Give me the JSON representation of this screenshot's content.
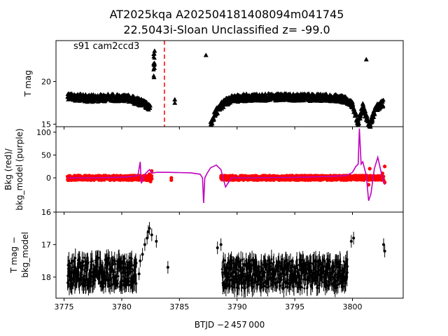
{
  "figure": {
    "title_line1": "AT2025kqa  A202504181408094m041745",
    "title_line2": "22.5043i-Sloan Unclassified z= -99.0",
    "xlabel": "BTJD −2 457 000"
  },
  "chart_data": [
    {
      "type": "scatter",
      "panel": "top",
      "ylabel": "T mag",
      "annotation": "s91 cam2ccd3",
      "xlim": [
        3774.3,
        3804.4
      ],
      "ylim": [
        24.8,
        14.7
      ],
      "yticks": [
        15,
        20
      ],
      "marker_color": "#000000",
      "marker": "triangle",
      "series": [
        {
          "baseline_x": [
            3775.3,
            3776.0,
            3777.0,
            3778.0,
            3779.0,
            3780.0,
            3780.8,
            3781.0,
            3781.5,
            3782.0,
            3782.5
          ],
          "baseline_y": [
            18.8,
            18.6,
            18.5,
            18.5,
            18.6,
            18.5,
            18.5,
            18.3,
            18.1,
            17.8,
            17.2
          ],
          "points_x": [
            3782.8,
            3782.8,
            3782.85,
            3784.6,
            3784.6,
            3787.3,
            3801.2
          ],
          "points_y": [
            20.5,
            22.0,
            23.6,
            17.9,
            17.5,
            23.1,
            22.6
          ]
        },
        {
          "baseline_x": [
            3787.7,
            3788.0,
            3788.5,
            3789.0,
            3789.5,
            3790.0,
            3791.0,
            3793.0,
            3795.0,
            3797.0,
            3798.5,
            3799.5,
            3800.0,
            3800.5,
            3800.9,
            3801.0,
            3801.5,
            3802.0,
            3802.7
          ],
          "baseline_y": [
            15.4,
            16.5,
            17.5,
            18.0,
            18.4,
            18.5,
            18.6,
            18.6,
            18.6,
            18.6,
            18.5,
            18.3,
            17.7,
            15.6,
            17.5,
            17.0,
            15.2,
            17.3,
            17.9
          ]
        }
      ],
      "vline": {
        "x": 3783.7,
        "color": "#ff0000",
        "style": "dashed"
      }
    },
    {
      "type": "line",
      "panel": "middle",
      "ylabel_line1": "Bkg (red)/",
      "ylabel_line2": "bkg_model (purple)",
      "xlim": [
        3774.3,
        3804.4
      ],
      "ylim": [
        -75,
        112
      ],
      "yticks": [
        0,
        50,
        100
      ],
      "series": [
        {
          "name": "Bkg",
          "color": "#ff0000",
          "kind": "scatter",
          "seg1_x": [
            3775.3,
            3782.6
          ],
          "seg2_x": [
            3788.6,
            3802.7
          ],
          "level": 0,
          "spread": 5
        },
        {
          "name": "bkg_model",
          "color": "#bf00bf",
          "kind": "line",
          "x": [
            3775.3,
            3778.0,
            3780.5,
            3781.4,
            3781.6,
            3781.7,
            3782.0,
            3782.4,
            3782.6,
            3783.0,
            3784.0,
            3786.0,
            3786.8,
            3787.0,
            3787.1,
            3787.2,
            3787.4,
            3787.7,
            3788.2,
            3788.6,
            3789.0,
            3789.5,
            3791.0,
            3795.0,
            3798.0,
            3799.5,
            3800.0,
            3800.3,
            3800.5,
            3800.6,
            3800.75,
            3800.9,
            3801.2,
            3801.4,
            3801.6,
            3801.9,
            3802.2,
            3802.6,
            3802.8
          ],
          "y": [
            0,
            0,
            2,
            5,
            35,
            -12,
            8,
            18,
            10,
            12,
            12,
            11,
            8,
            0,
            -55,
            0,
            10,
            22,
            28,
            18,
            -20,
            0,
            0,
            1,
            3,
            5,
            12,
            25,
            30,
            108,
            30,
            35,
            5,
            -50,
            -35,
            20,
            45,
            0,
            -15
          ]
        }
      ]
    },
    {
      "type": "scatter",
      "panel": "bottom",
      "ylabel_line1": "T mag −",
      "ylabel_line2": "bkg_model",
      "xlim": [
        3774.3,
        3804.4
      ],
      "ylim": [
        18.65,
        16.0
      ],
      "yticks": [
        16,
        17,
        18
      ],
      "series": [
        {
          "name": "seg1",
          "color": "#000000",
          "x_range": [
            3775.3,
            3781.3
          ],
          "center": 17.85,
          "spread": 0.45
        },
        {
          "name": "seg2",
          "color": "#000000",
          "x_range": [
            3788.7,
            3799.6
          ],
          "center": 17.9,
          "spread": 0.45
        },
        {
          "name": "outliers",
          "color": "#000000",
          "x": [
            3781.6,
            3781.8,
            3782.0,
            3782.2,
            3782.4,
            3782.6,
            3783.0,
            3784.0,
            3788.3,
            3788.6,
            3799.9,
            3800.1,
            3802.7,
            3802.8,
            3781.5,
            3782.3
          ],
          "y": [
            17.5,
            17.3,
            17.0,
            16.8,
            16.5,
            16.7,
            16.9,
            17.7,
            17.1,
            17.0,
            16.9,
            16.8,
            17.0,
            17.2,
            17.9,
            16.6
          ]
        }
      ]
    }
  ],
  "xaxis": {
    "ticks": [
      3775,
      3780,
      3785,
      3790,
      3795,
      3800
    ],
    "tick_labels": [
      "3775",
      "3780",
      "3785",
      "3790",
      "3795",
      "3800"
    ]
  },
  "top_yticks_labels": [
    "15",
    "20"
  ],
  "mid_yticks_labels": [
    "0",
    "50",
    "100"
  ],
  "bot_yticks_labels": [
    "16",
    "17",
    "18"
  ]
}
